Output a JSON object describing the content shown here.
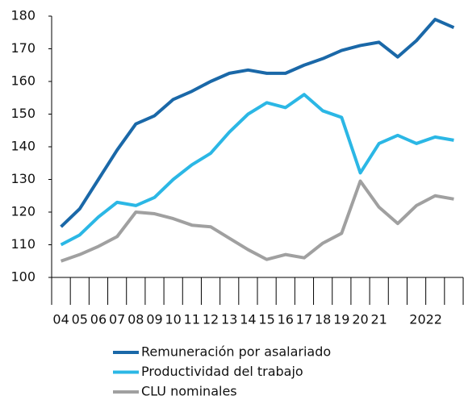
{
  "chart_data": {
    "type": "line",
    "categories": [
      "04",
      "05",
      "06",
      "07",
      "08",
      "09",
      "10",
      "11",
      "12",
      "13",
      "14",
      "15",
      "16",
      "17",
      "18",
      "19",
      "20",
      "21",
      null,
      null,
      null,
      null
    ],
    "group_labels": [
      {
        "label": "2022",
        "start": 18,
        "end": 21
      }
    ],
    "series": [
      {
        "name": "Remuneración por asalariado",
        "color": "#1a68a8",
        "values": [
          115.5,
          121,
          130,
          139,
          147,
          149.5,
          154.5,
          157,
          160,
          162.5,
          163.5,
          162.5,
          162.5,
          165,
          167,
          169.5,
          171,
          172,
          167.5,
          172.5,
          179,
          176.5
        ]
      },
      {
        "name": "Productividad del trabajo",
        "color": "#2bb7e5",
        "values": [
          110,
          113,
          118.5,
          123,
          122,
          124.5,
          130,
          134.5,
          138,
          144.5,
          150,
          153.5,
          152,
          156,
          151,
          149,
          132,
          141,
          143.5,
          141,
          143,
          142
        ]
      },
      {
        "name": "CLU nominales",
        "color": "#a0a0a0",
        "values": [
          105,
          107,
          109.5,
          112.5,
          120,
          119.5,
          118,
          116,
          115.5,
          112,
          108.5,
          105.5,
          107,
          106,
          110.5,
          113.5,
          129.5,
          121.5,
          116.5,
          122,
          125,
          124
        ]
      }
    ],
    "ylim": [
      100,
      180
    ],
    "yticks": [
      100,
      110,
      120,
      130,
      140,
      150,
      160,
      170,
      180
    ],
    "legend": "bottom"
  }
}
